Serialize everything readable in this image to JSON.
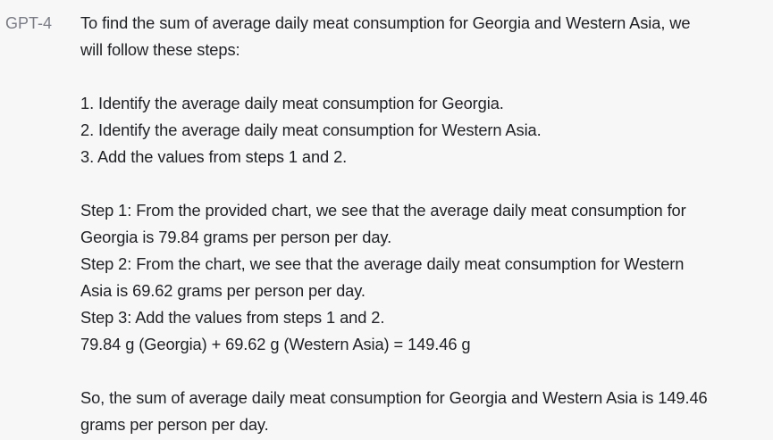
{
  "message": {
    "speaker": "GPT-4",
    "lines": [
      "To find the sum of average daily meat consumption for Georgia and Western Asia, we",
      "will follow these steps:",
      "",
      "1. Identify the average daily meat consumption for Georgia.",
      "2. Identify the average daily meat consumption for Western Asia.",
      "3. Add the values from steps 1 and 2.",
      "",
      "Step 1: From the provided chart, we see that the average daily meat consumption for",
      "Georgia is 79.84 grams per person per day.",
      "Step 2: From the chart, we see that the average daily meat consumption for Western",
      "Asia is 69.62 grams per person per day.",
      "Step 3: Add the values from steps 1 and 2.",
      "79.84 g (Georgia) + 69.62 g (Western Asia) = 149.46 g",
      "",
      "So, the sum of average daily meat consumption for Georgia and Western Asia is 149.46",
      "grams per person per day."
    ]
  }
}
